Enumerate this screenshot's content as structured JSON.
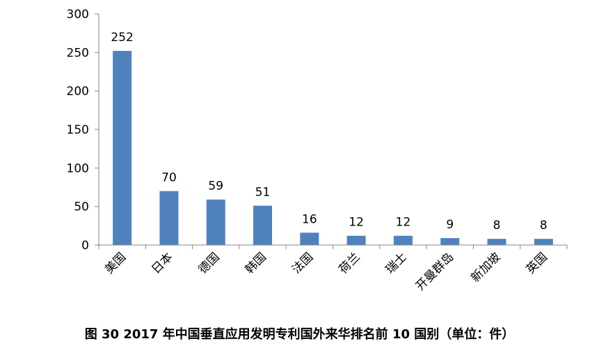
{
  "chart_data": {
    "type": "bar",
    "categories": [
      "美国",
      "日本",
      "德国",
      "韩国",
      "法国",
      "荷兰",
      "瑞士",
      "开曼群岛",
      "新加坡",
      "英国"
    ],
    "values": [
      252,
      70,
      59,
      51,
      16,
      12,
      12,
      9,
      8,
      8
    ],
    "data_labels": [
      "252",
      "70",
      "59",
      "51",
      "16",
      "12",
      "12",
      "9",
      "8",
      "8"
    ],
    "y_ticks": [
      "0",
      "50",
      "100",
      "150",
      "200",
      "250",
      "300"
    ],
    "y_tick_values": [
      0,
      50,
      100,
      150,
      200,
      250,
      300
    ],
    "ylim": [
      0,
      300
    ],
    "grid": false,
    "legend": "none",
    "bar_color": "#4F81BD",
    "axis_color": "#868686"
  },
  "caption": "图 30 2017 年中国垂直应用发明专利国外来华排名前 10 国别（单位：件）"
}
